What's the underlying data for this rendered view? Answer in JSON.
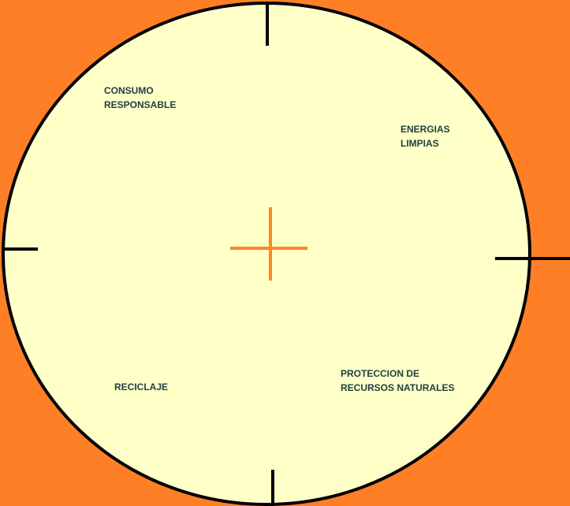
{
  "colors": {
    "background": "#ff7f27",
    "circle_fill": "#ffffc8",
    "circle_stroke": "#000000",
    "cross": "#ff8627",
    "text": "#1f4040"
  },
  "diagram": {
    "quadrants": [
      {
        "lines": [
          "CONSUMO",
          "RESPONSABLE"
        ]
      },
      {
        "lines": [
          "ENERGIAS",
          "LIMPIAS"
        ]
      },
      {
        "lines": [
          "RECICLAJE"
        ]
      },
      {
        "lines": [
          "PROTECCION DE",
          "RECURSOS NATURALES"
        ]
      }
    ]
  }
}
